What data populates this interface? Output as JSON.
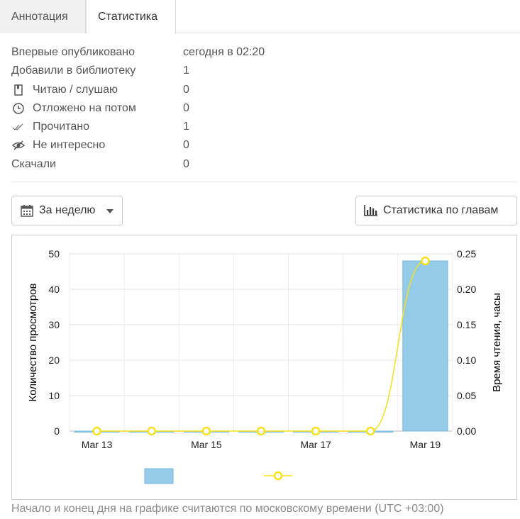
{
  "tabs": [
    {
      "label": "Аннотация",
      "active": false
    },
    {
      "label": "Статистика",
      "active": true
    }
  ],
  "stats": {
    "first_published_label": "Впервые опубликовано",
    "first_published_value": "сегодня в 02:20",
    "added_label": "Добавили в библиотеку",
    "added_value": "1",
    "reading_label": "Читаю / слушаю",
    "reading_value": "0",
    "postponed_label": "Отложено на потом",
    "postponed_value": "0",
    "read_label": "Прочитано",
    "read_value": "1",
    "not_interested_label": "Не интересно",
    "not_interested_value": "0",
    "downloaded_label": "Скачали",
    "downloaded_value": "0"
  },
  "icons": {
    "reading": "book-icon",
    "postponed": "clock-icon",
    "read": "double-check-icon",
    "not_interested": "eye-slash-icon",
    "period": "calendar-icon",
    "chapters": "bar-chart-icon"
  },
  "controls": {
    "period_label": "За неделю",
    "chapters_label": "Статистика по главам"
  },
  "chart_data": {
    "type": "bar",
    "x": [
      "Mar 13",
      "Mar 14",
      "Mar 15",
      "Mar 16",
      "Mar 17",
      "Mar 18",
      "Mar 19"
    ],
    "x_tick_labels": [
      "Mar 13",
      "Mar 15",
      "Mar 17",
      "Mar 19"
    ],
    "series": [
      {
        "axis": "left",
        "type": "bar",
        "values": [
          0,
          0,
          0,
          0,
          0,
          0,
          48
        ],
        "color": "#93cbe8"
      },
      {
        "axis": "right",
        "type": "line",
        "values": [
          0,
          0,
          0,
          0,
          0,
          0,
          0.24
        ],
        "color": "#f7e11b"
      }
    ],
    "ylabel": "Количество просмотров",
    "y2label": "Время чтения, часы",
    "ylim": [
      0,
      50
    ],
    "y2lim": [
      0,
      0.25
    ],
    "yticks": [
      "0",
      "10",
      "20",
      "30",
      "40",
      "50"
    ],
    "y2ticks": [
      "0.00",
      "0.05",
      "0.10",
      "0.15",
      "0.20",
      "0.25"
    ],
    "grid": true,
    "legend": "bottom"
  },
  "footnote": "Начало и конец дня на графике считаются по московскому времени (UTC +03:00)"
}
